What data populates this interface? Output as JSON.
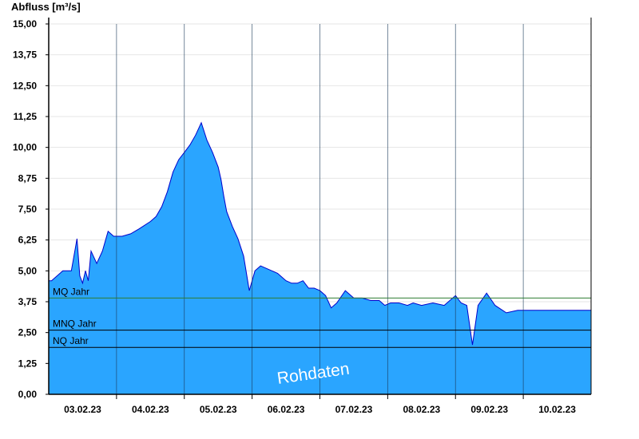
{
  "chart_data": {
    "type": "area",
    "ylabel": "Abfluss [m³/s]",
    "ylim": [
      0,
      15
    ],
    "yticks": [
      "0,00",
      "1,25",
      "2,50",
      "3,75",
      "5,00",
      "6,25",
      "7,50",
      "8,75",
      "10,00",
      "11,25",
      "12,50",
      "13,75",
      "15,00"
    ],
    "xlim": [
      "2023-02-02T12:00",
      "2023-02-10T12:00"
    ],
    "xticks": [
      {
        "x": "2023-02-03T00:00",
        "label": "03.02.23"
      },
      {
        "x": "2023-02-04T00:00",
        "label": "04.02.23"
      },
      {
        "x": "2023-02-05T00:00",
        "label": "05.02.23"
      },
      {
        "x": "2023-02-06T00:00",
        "label": "06.02.23"
      },
      {
        "x": "2023-02-07T00:00",
        "label": "07.02.23"
      },
      {
        "x": "2023-02-08T00:00",
        "label": "08.02.23"
      },
      {
        "x": "2023-02-09T00:00",
        "label": "09.02.23"
      },
      {
        "x": "2023-02-10T00:00",
        "label": "10.02.23"
      }
    ],
    "day_separators": [
      "2023-02-03T12:00",
      "2023-02-04T12:00",
      "2023-02-05T12:00",
      "2023-02-06T12:00",
      "2023-02-07T12:00",
      "2023-02-08T12:00",
      "2023-02-09T12:00"
    ],
    "grid": true,
    "reference_lines": [
      {
        "label": "MQ Jahr",
        "value": 3.9,
        "color": "#2e7d32"
      },
      {
        "label": "MNQ Jahr",
        "value": 2.6,
        "color": "#000000"
      },
      {
        "label": "NQ Jahr",
        "value": 1.9,
        "color": "#000000"
      }
    ],
    "annotation": "Rohdaten",
    "colors": {
      "fill": "#2aa5ff",
      "line": "#0000cc"
    },
    "series": [
      {
        "x": [
          "2023-02-02T12:00",
          "2023-02-02T13:00",
          "2023-02-02T15:00",
          "2023-02-02T17:00",
          "2023-02-02T20:00",
          "2023-02-02T22:00",
          "2023-02-02T23:00",
          "2023-02-03T00:00",
          "2023-02-03T01:00",
          "2023-02-03T02:00",
          "2023-02-03T03:00",
          "2023-02-03T05:00",
          "2023-02-03T07:00",
          "2023-02-03T09:00",
          "2023-02-03T11:00",
          "2023-02-03T14:00",
          "2023-02-03T17:00",
          "2023-02-03T20:00",
          "2023-02-04T00:00",
          "2023-02-04T02:00",
          "2023-02-04T04:00",
          "2023-02-04T06:00",
          "2023-02-04T08:00",
          "2023-02-04T10:00",
          "2023-02-04T12:00",
          "2023-02-04T14:00",
          "2023-02-04T16:00",
          "2023-02-04T18:00",
          "2023-02-04T20:00",
          "2023-02-04T22:00",
          "2023-02-05T00:00",
          "2023-02-05T01:00",
          "2023-02-05T02:00",
          "2023-02-05T03:00",
          "2023-02-05T05:00",
          "2023-02-05T07:00",
          "2023-02-05T09:00",
          "2023-02-05T11:00",
          "2023-02-05T13:00",
          "2023-02-05T15:00",
          "2023-02-05T17:00",
          "2023-02-05T19:00",
          "2023-02-05T21:00",
          "2023-02-05T22:00",
          "2023-02-06T00:00",
          "2023-02-06T02:00",
          "2023-02-06T03:00",
          "2023-02-06T04:00",
          "2023-02-06T06:00",
          "2023-02-06T08:00",
          "2023-02-06T10:00",
          "2023-02-06T12:00",
          "2023-02-06T14:00",
          "2023-02-06T16:00",
          "2023-02-06T18:00",
          "2023-02-06T21:00",
          "2023-02-07T00:00",
          "2023-02-07T03:00",
          "2023-02-07T06:00",
          "2023-02-07T09:00",
          "2023-02-07T11:00",
          "2023-02-07T13:00",
          "2023-02-07T16:00",
          "2023-02-07T19:00",
          "2023-02-07T21:00",
          "2023-02-08T00:00",
          "2023-02-08T04:00",
          "2023-02-08T08:00",
          "2023-02-08T12:00",
          "2023-02-08T14:00",
          "2023-02-08T16:00",
          "2023-02-08T18:00",
          "2023-02-08T20:00",
          "2023-02-08T23:00",
          "2023-02-09T02:00",
          "2023-02-09T06:00",
          "2023-02-09T10:00",
          "2023-02-09T12:00",
          "2023-02-09T14:00",
          "2023-02-09T16:00",
          "2023-02-09T18:00",
          "2023-02-09T20:00",
          "2023-02-09T22:00",
          "2023-02-10T00:00",
          "2023-02-10T02:00",
          "2023-02-10T03:00",
          "2023-02-10T04:00",
          "2023-02-10T05:00",
          "2023-02-10T06:00",
          "2023-02-10T07:00",
          "2023-02-10T08:00",
          "2023-02-10T09:00",
          "2023-02-10T10:00",
          "2023-02-10T11:00",
          "2023-02-10T12:00"
        ],
        "y": [
          4.6,
          4.6,
          4.8,
          5.0,
          5.0,
          6.3,
          4.8,
          4.5,
          5.0,
          4.6,
          5.8,
          5.3,
          5.8,
          6.6,
          6.4,
          6.4,
          6.5,
          6.7,
          7.0,
          7.2,
          7.6,
          8.2,
          9.0,
          9.5,
          9.8,
          10.1,
          10.5,
          11.0,
          10.3,
          9.8,
          9.2,
          8.7,
          8.0,
          7.4,
          6.8,
          6.3,
          5.6,
          4.2,
          5.0,
          5.2,
          5.1,
          5.0,
          4.9,
          4.8,
          4.6,
          4.5,
          4.5,
          4.5,
          4.6,
          4.3,
          4.3,
          4.2,
          4.0,
          3.5,
          3.7,
          4.2,
          3.9,
          3.9,
          3.8,
          3.8,
          3.6,
          3.7,
          3.7,
          3.6,
          3.7,
          3.6,
          3.7,
          3.6,
          4.0,
          3.7,
          3.6,
          2.0,
          3.6,
          4.1,
          3.6,
          3.3,
          3.4,
          3.4,
          3.4,
          3.4,
          3.4,
          3.4,
          3.4,
          3.4,
          3.4,
          3.4,
          3.4,
          3.4,
          3.4,
          3.4,
          3.4,
          3.4,
          3.4,
          3.4,
          3.4
        ]
      }
    ]
  }
}
